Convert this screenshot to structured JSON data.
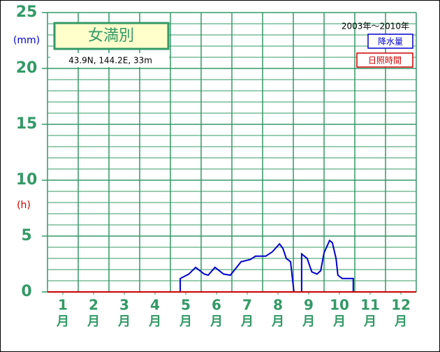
{
  "chart_data": {
    "type": "line",
    "title": "女満別",
    "subtitle": "43.9N, 144.2E, 33m",
    "period": "2003年～2010年",
    "y_unit_left": "(mm)",
    "y_unit_right": "(h)",
    "x_unit": "月",
    "xlim": [
      0.5,
      12.5
    ],
    "xticks": [
      1,
      2,
      3,
      4,
      5,
      6,
      7,
      8,
      9,
      10,
      11,
      12
    ],
    "ylim": [
      0,
      25
    ],
    "yticks": [
      0,
      5,
      10,
      15,
      20,
      25
    ],
    "grid": true,
    "series": [
      {
        "name": "降水量",
        "color": "#0000cc",
        "x": [
          4.82,
          4.82,
          5.1,
          5.32,
          5.6,
          5.73,
          5.95,
          6.23,
          6.45,
          6.8,
          7.1,
          7.27,
          7.6,
          7.82,
          8.05,
          8.16,
          8.27,
          8.41,
          8.52,
          null,
          8.77,
          8.77,
          8.95,
          9.1,
          9.27,
          9.39,
          9.5,
          9.68,
          9.77,
          9.89,
          9.95,
          10.09,
          10.45,
          10.45
        ],
        "values": [
          0,
          1.2,
          1.6,
          2.2,
          1.6,
          1.5,
          2.2,
          1.6,
          1.5,
          2.7,
          2.9,
          3.2,
          3.2,
          3.6,
          4.3,
          3.9,
          3.0,
          2.7,
          0,
          null,
          0,
          3.4,
          3.0,
          1.8,
          1.6,
          1.9,
          3.5,
          4.6,
          4.4,
          3.0,
          1.5,
          1.2,
          1.2,
          0
        ]
      },
      {
        "name": "日照時間",
        "color": "#cc0000",
        "x": [
          0.5,
          12.5
        ],
        "values": [
          0,
          0
        ]
      }
    ]
  }
}
